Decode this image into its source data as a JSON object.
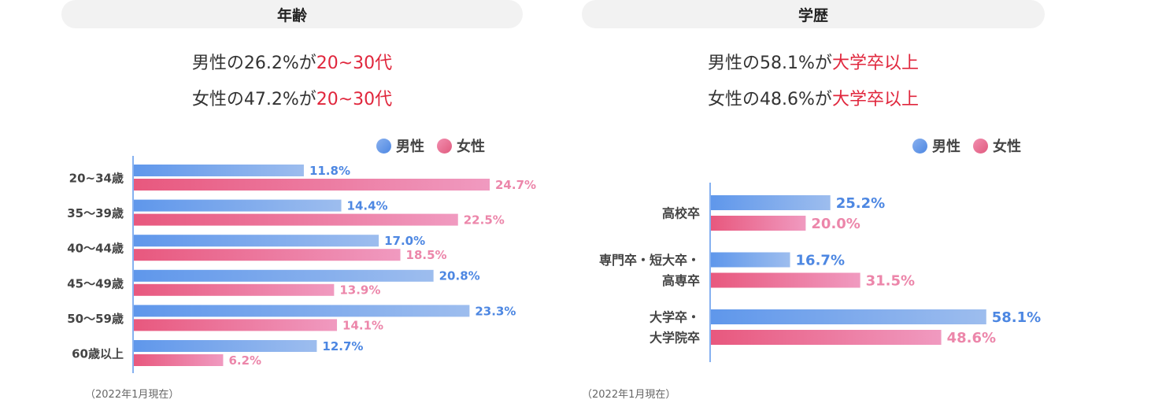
{
  "colors": {
    "male_start": "#5f97eb",
    "male_end": "#9dbdee",
    "female_start": "#e8587e",
    "female_end": "#f09ac0",
    "male_text": "#4d87e2",
    "female_text": "#ec86aa",
    "highlight": "#e0263c",
    "axis": "#5f97eb"
  },
  "age_panel": {
    "title": "年齢",
    "summary": [
      {
        "prefix": "男性の26.2%が",
        "highlight": "20~30代"
      },
      {
        "prefix": "女性の47.2%が",
        "highlight": "20~30代"
      }
    ],
    "legend": {
      "male": "男性",
      "female": "女性"
    },
    "note": "（2022年1月現在）"
  },
  "edu_panel": {
    "title": "学歴",
    "summary": [
      {
        "prefix": "男性の58.1%が",
        "highlight": "大学卒以上"
      },
      {
        "prefix": "女性の48.6%が",
        "highlight": "大学卒以上"
      }
    ],
    "legend": {
      "male": "男性",
      "female": "女性"
    },
    "note": "（2022年1月現在）"
  },
  "chart_data": [
    {
      "type": "bar",
      "orientation": "horizontal",
      "categories": [
        "20~34歳",
        "35〜39歳",
        "40〜44歳",
        "45〜49歳",
        "50〜59歳",
        "60歳以上"
      ],
      "series": [
        {
          "name": "男性",
          "values": [
            11.8,
            14.4,
            17.0,
            20.8,
            23.3,
            12.7
          ],
          "labels": [
            "11.8%",
            "14.4%",
            "17.0%",
            "20.8%",
            "23.3%",
            "12.7%"
          ]
        },
        {
          "name": "女性",
          "values": [
            24.7,
            22.5,
            18.5,
            13.9,
            14.1,
            6.2
          ],
          "labels": [
            "24.7%",
            "22.5%",
            "18.5%",
            "13.9%",
            "14.1%",
            "6.2%"
          ]
        }
      ],
      "xlim": [
        0,
        30
      ],
      "legend_position": "top-right"
    },
    {
      "type": "bar",
      "orientation": "horizontal",
      "categories": [
        [
          "高校卒"
        ],
        [
          "専門卒・短大卒・",
          "高専卒"
        ],
        [
          "大学卒・",
          "大学院卒"
        ]
      ],
      "series": [
        {
          "name": "男性",
          "values": [
            25.2,
            16.7,
            58.1
          ],
          "labels": [
            "25.2%",
            "16.7%",
            "58.1%"
          ]
        },
        {
          "name": "女性",
          "values": [
            20.0,
            31.5,
            48.6
          ],
          "labels": [
            "20.0%",
            "31.5%",
            "48.6%"
          ]
        }
      ],
      "xlim": [
        0,
        60
      ],
      "legend_position": "top-right"
    }
  ]
}
